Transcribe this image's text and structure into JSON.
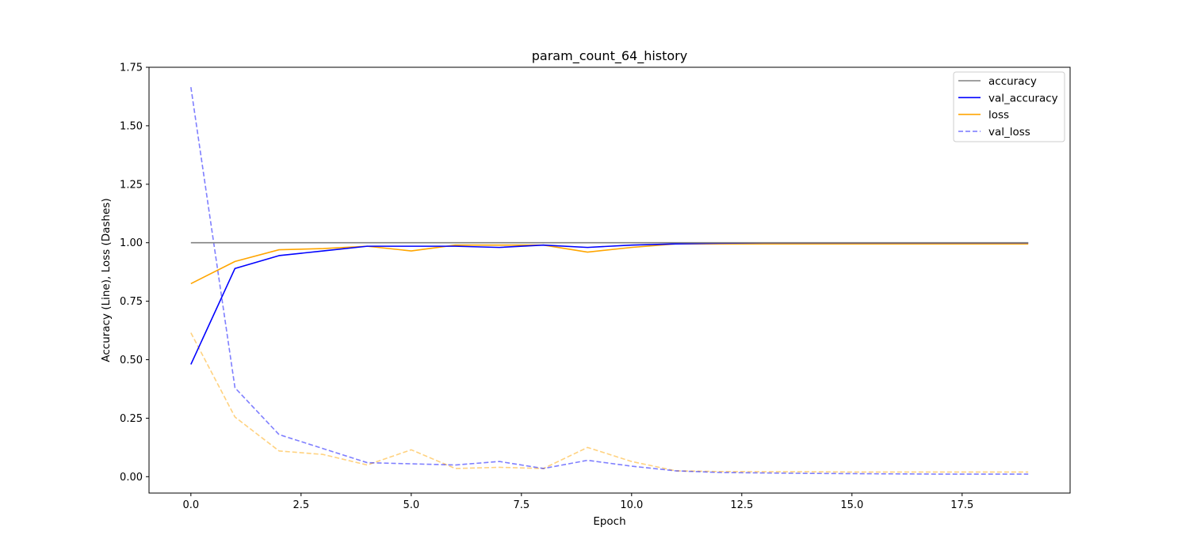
{
  "chart_data": {
    "type": "line",
    "title": "param_count_64_history",
    "xlabel": "Epoch",
    "ylabel": "Accuracy (Line), Loss (Dashes)",
    "xlim": [
      -0.95,
      19.95
    ],
    "ylim": [
      -0.07,
      1.75
    ],
    "xticks": [
      0.0,
      2.5,
      5.0,
      7.5,
      10.0,
      12.5,
      15.0,
      17.5
    ],
    "xtick_labels": [
      "0.0",
      "2.5",
      "5.0",
      "7.5",
      "10.0",
      "12.5",
      "15.0",
      "17.5"
    ],
    "yticks": [
      0.0,
      0.25,
      0.5,
      0.75,
      1.0,
      1.25,
      1.5,
      1.75
    ],
    "ytick_labels": [
      "0.00",
      "0.25",
      "0.50",
      "0.75",
      "1.00",
      "1.25",
      "1.50",
      "1.75"
    ],
    "grid": false,
    "legend_position": "top-right",
    "x": [
      0,
      1,
      2,
      3,
      4,
      5,
      6,
      7,
      8,
      9,
      10,
      11,
      12,
      13,
      14,
      15,
      16,
      17,
      18,
      19
    ],
    "series": [
      {
        "name": "accuracy",
        "color": "#808080",
        "dashed": false,
        "opacity": 1,
        "values": [
          1,
          1,
          1,
          1,
          1,
          1,
          1,
          1,
          1,
          1,
          1,
          1,
          1,
          1,
          1,
          1,
          1,
          1,
          1,
          1
        ]
      },
      {
        "name": "val_accuracy",
        "color": "#0000ff",
        "dashed": false,
        "opacity": 1,
        "values": [
          0.48,
          0.89,
          0.945,
          0.965,
          0.985,
          0.985,
          0.985,
          0.98,
          0.99,
          0.98,
          0.99,
          0.995,
          0.998,
          0.999,
          0.999,
          0.999,
          0.999,
          0.999,
          0.999,
          0.999
        ]
      },
      {
        "name": "loss",
        "color": "#ffa500",
        "dashed": false,
        "opacity": 1,
        "values": [
          0.825,
          0.92,
          0.97,
          0.975,
          0.985,
          0.965,
          0.99,
          0.99,
          0.99,
          0.96,
          0.98,
          0.995,
          0.995,
          0.995,
          0.995,
          0.995,
          0.995,
          0.995,
          0.995,
          0.995
        ]
      },
      {
        "name": "val_loss",
        "color": "#0000ff",
        "dashed": true,
        "opacity": 0.5,
        "values": [
          1.665,
          0.38,
          0.18,
          0.12,
          0.06,
          0.055,
          0.05,
          0.065,
          0.035,
          0.07,
          0.045,
          0.025,
          0.018,
          0.016,
          0.014,
          0.013,
          0.012,
          0.011,
          0.011,
          0.011
        ]
      },
      {
        "color": "#ffa500",
        "dashed": true,
        "opacity": 0.5,
        "values": [
          0.615,
          0.255,
          0.11,
          0.095,
          0.05,
          0.115,
          0.035,
          0.04,
          0.035,
          0.125,
          0.065,
          0.025,
          0.022,
          0.021,
          0.021,
          0.02,
          0.02,
          0.02,
          0.02,
          0.02
        ]
      }
    ]
  }
}
